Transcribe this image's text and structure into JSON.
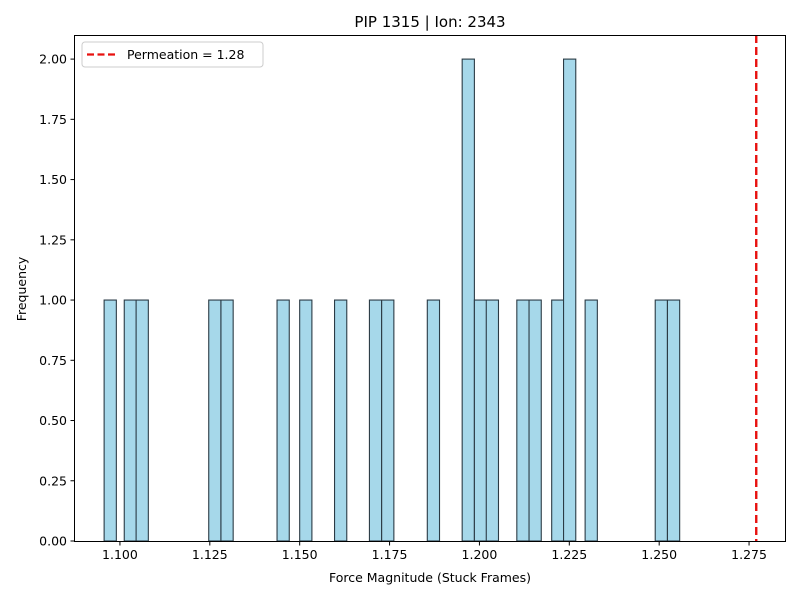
{
  "chart_data": {
    "type": "bar",
    "subtype": "histogram",
    "title": "PIP 1315 | Ion: 2343",
    "xlabel": "Force Magnitude (Stuck Frames)",
    "ylabel": "Frequency",
    "xlim": [
      1.0875,
      1.285
    ],
    "ylim": [
      0,
      2.1
    ],
    "bin_width": 0.0034,
    "x_ticks": [
      1.1,
      1.125,
      1.15,
      1.175,
      1.2,
      1.225,
      1.25,
      1.275
    ],
    "x_tick_labels": [
      "1.100",
      "1.125",
      "1.150",
      "1.175",
      "1.200",
      "1.225",
      "1.250",
      "1.275"
    ],
    "y_ticks": [
      0.0,
      0.25,
      0.5,
      0.75,
      1.0,
      1.25,
      1.5,
      1.75,
      2.0
    ],
    "y_tick_labels": [
      "0.00",
      "0.25",
      "0.50",
      "0.75",
      "1.00",
      "1.25",
      "1.50",
      "1.75",
      "2.00"
    ],
    "bars": [
      {
        "x0": 1.0956,
        "count": 1
      },
      {
        "x0": 1.1012,
        "count": 1
      },
      {
        "x0": 1.1045,
        "count": 1
      },
      {
        "x0": 1.1247,
        "count": 1
      },
      {
        "x0": 1.1281,
        "count": 1
      },
      {
        "x0": 1.1437,
        "count": 1
      },
      {
        "x0": 1.15,
        "count": 1
      },
      {
        "x0": 1.1597,
        "count": 1
      },
      {
        "x0": 1.1694,
        "count": 1
      },
      {
        "x0": 1.1728,
        "count": 1
      },
      {
        "x0": 1.1855,
        "count": 1
      },
      {
        "x0": 1.1952,
        "count": 2
      },
      {
        "x0": 1.1986,
        "count": 1
      },
      {
        "x0": 1.2019,
        "count": 1
      },
      {
        "x0": 1.2104,
        "count": 1
      },
      {
        "x0": 1.2138,
        "count": 1
      },
      {
        "x0": 1.2201,
        "count": 1
      },
      {
        "x0": 1.2234,
        "count": 2
      },
      {
        "x0": 1.2294,
        "count": 1
      },
      {
        "x0": 1.2489,
        "count": 1
      },
      {
        "x0": 1.2523,
        "count": 1
      }
    ],
    "vline": {
      "x": 1.277,
      "color": "#e8110f",
      "style": "dashed"
    },
    "legend": {
      "position": "top-left",
      "entries": [
        "Permeation = 1.28"
      ]
    },
    "grid": false,
    "colors": {
      "bar_fill": "#a6d8ea",
      "bar_edge": "#2b3b45",
      "axis": "#000000"
    }
  }
}
